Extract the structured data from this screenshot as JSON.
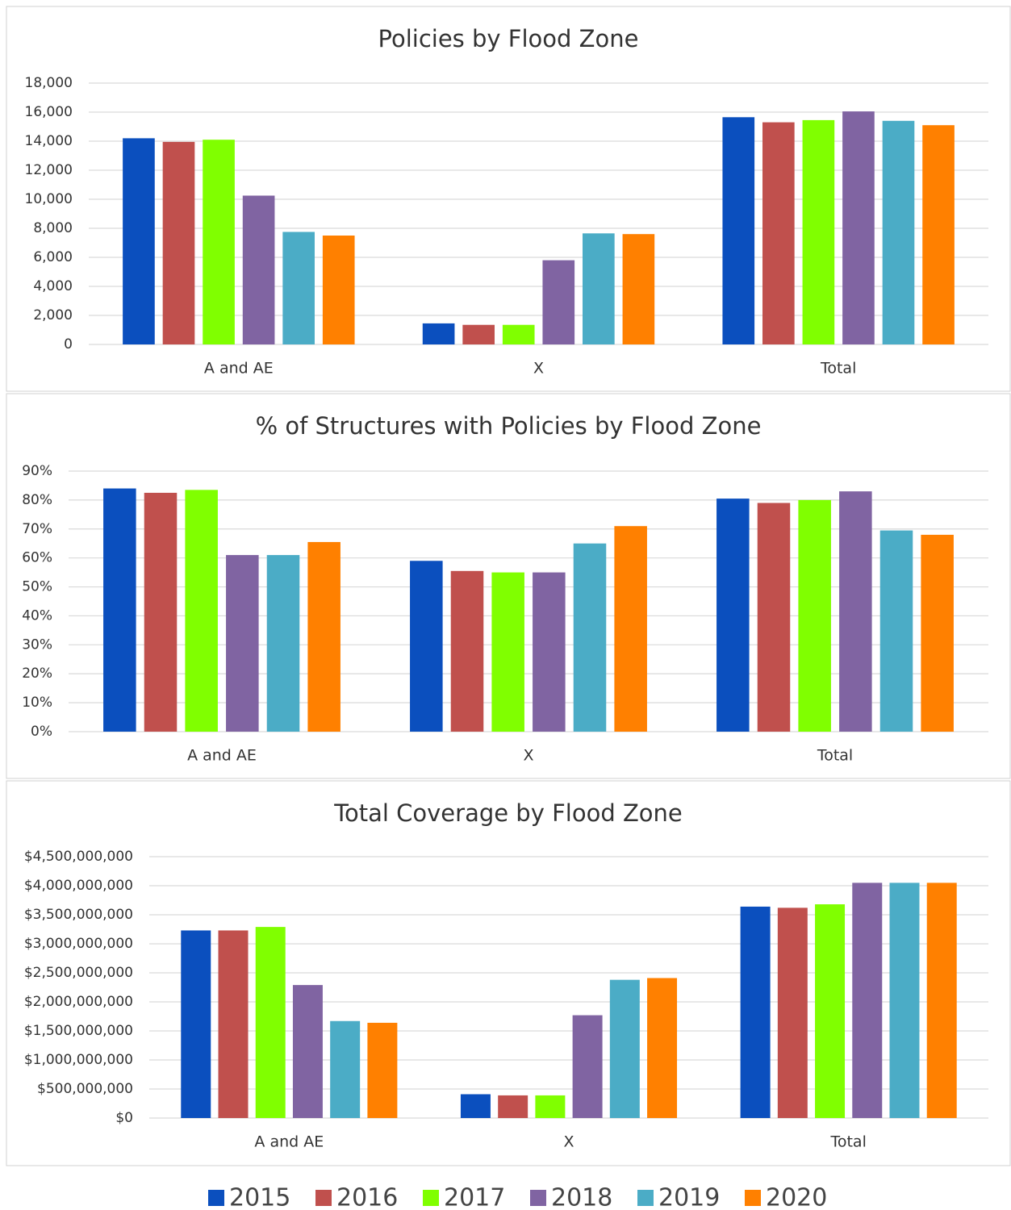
{
  "legend": {
    "series": [
      {
        "name": "2015",
        "color": "#0b4fbe"
      },
      {
        "name": "2016",
        "color": "#c0504d"
      },
      {
        "name": "2017",
        "color": "#80ff00"
      },
      {
        "name": "2018",
        "color": "#8064a2"
      },
      {
        "name": "2019",
        "color": "#4bacc6"
      },
      {
        "name": "2020",
        "color": "#ff8000"
      }
    ]
  },
  "chart_data": [
    {
      "type": "bar",
      "title": "Policies by Flood Zone",
      "categories": [
        "A and AE",
        "X",
        "Total"
      ],
      "series": [
        {
          "values": [
            14200,
            1450,
            15650
          ]
        },
        {
          "values": [
            13950,
            1350,
            15300
          ]
        },
        {
          "values": [
            14100,
            1350,
            15450
          ]
        },
        {
          "values": [
            10250,
            5800,
            16050
          ]
        },
        {
          "values": [
            7750,
            7650,
            15400
          ]
        },
        {
          "values": [
            7500,
            7600,
            15100
          ]
        }
      ],
      "ylim": [
        0,
        18000
      ],
      "yticks": [
        0,
        {
          "value": 2000,
          "label": "2,000"
        },
        {
          "value": 4000,
          "label": "4,000"
        },
        {
          "value": 6000,
          "label": "6,000"
        },
        {
          "value": 8000,
          "label": "8,000"
        },
        {
          "value": 10000,
          "label": "10,000"
        },
        {
          "value": 12000,
          "label": "12,000"
        },
        {
          "value": 14000,
          "label": "14,000"
        },
        {
          "value": 16000,
          "label": "16,000"
        },
        {
          "value": 18000,
          "label": "18,000"
        }
      ],
      "grid": true
    },
    {
      "type": "bar",
      "title": "% of Structures with Policies by Flood Zone",
      "categories": [
        "A and AE",
        "X",
        "Total"
      ],
      "series": [
        {
          "values": [
            84,
            59,
            80.5
          ]
        },
        {
          "values": [
            82.5,
            55.5,
            79
          ]
        },
        {
          "values": [
            83.5,
            55,
            80
          ]
        },
        {
          "values": [
            61,
            55,
            83
          ]
        },
        {
          "values": [
            61,
            65,
            69.5
          ]
        },
        {
          "values": [
            65.5,
            71,
            68
          ]
        }
      ],
      "ylim": [
        0,
        90
      ],
      "yticks": [
        {
          "value": 0,
          "label": "0%"
        },
        {
          "value": 10,
          "label": "10%"
        },
        {
          "value": 20,
          "label": "20%"
        },
        {
          "value": 30,
          "label": "30%"
        },
        {
          "value": 40,
          "label": "40%"
        },
        {
          "value": 50,
          "label": "50%"
        },
        {
          "value": 60,
          "label": "60%"
        },
        {
          "value": 70,
          "label": "70%"
        },
        {
          "value": 80,
          "label": "80%"
        },
        {
          "value": 90,
          "label": "90%"
        }
      ],
      "grid": true
    },
    {
      "type": "bar",
      "title": "Total Coverage by Flood Zone",
      "categories": [
        "A and AE",
        "X",
        "Total"
      ],
      "series": [
        {
          "values": [
            3230000000,
            410000000,
            3640000000
          ]
        },
        {
          "values": [
            3230000000,
            390000000,
            3620000000
          ]
        },
        {
          "values": [
            3290000000,
            390000000,
            3680000000
          ]
        },
        {
          "values": [
            2290000000,
            1770000000,
            4050000000
          ]
        },
        {
          "values": [
            1670000000,
            2380000000,
            4050000000
          ]
        },
        {
          "values": [
            1640000000,
            2410000000,
            4050000000
          ]
        }
      ],
      "ylim": [
        0,
        4500000000
      ],
      "yticks": [
        {
          "value": 0,
          "label": "$0"
        },
        {
          "value": 500000000,
          "label": "$500,000,000"
        },
        {
          "value": 1000000000,
          "label": "$1,000,000,000"
        },
        {
          "value": 1500000000,
          "label": "$1,500,000,000"
        },
        {
          "value": 2000000000,
          "label": "$2,000,000,000"
        },
        {
          "value": 2500000000,
          "label": "$2,500,000,000"
        },
        {
          "value": 3000000000,
          "label": "$3,000,000,000"
        },
        {
          "value": 3500000000,
          "label": "$3,500,000,000"
        },
        {
          "value": 4000000000,
          "label": "$4,000,000,000"
        },
        {
          "value": 4500000000,
          "label": "$4,500,000,000"
        }
      ],
      "grid": true
    }
  ]
}
